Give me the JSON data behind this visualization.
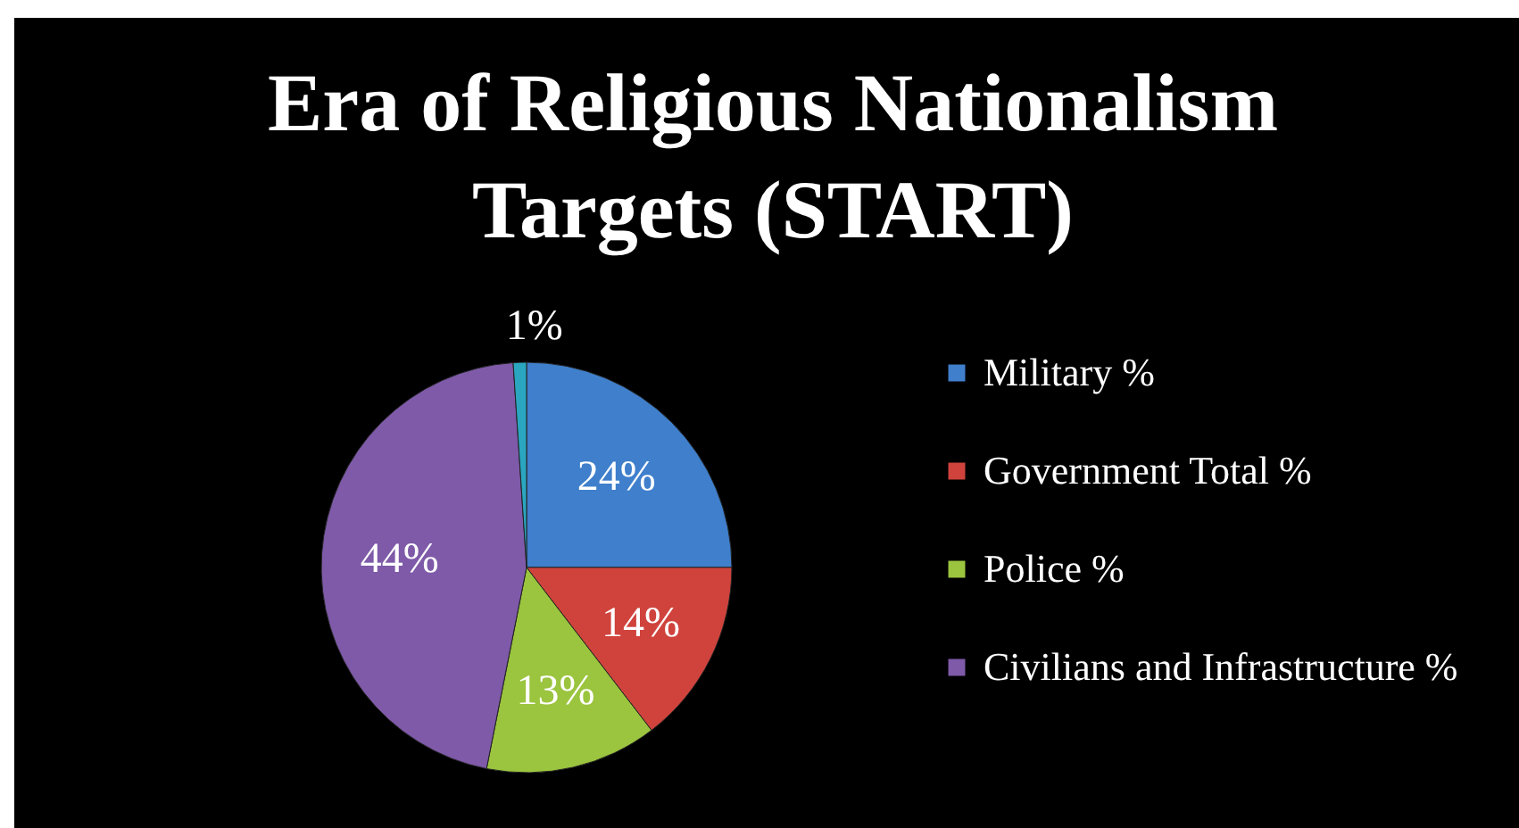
{
  "chart_data": {
    "type": "pie",
    "title": "Era of Religious Nationalism Targets (START)",
    "categories": [
      "Military %",
      "Government Total %",
      "Police %",
      "Civilians and Infrastructure %",
      null
    ],
    "values": [
      24,
      14,
      13,
      44,
      1
    ],
    "colors": [
      "#3f7fcc",
      "#d0433d",
      "#9bc43f",
      "#7e5aa8",
      "#2aa6c0"
    ],
    "value_labels": [
      "24%",
      "14%",
      "13%",
      "44%",
      "1%"
    ],
    "legend": "right"
  }
}
